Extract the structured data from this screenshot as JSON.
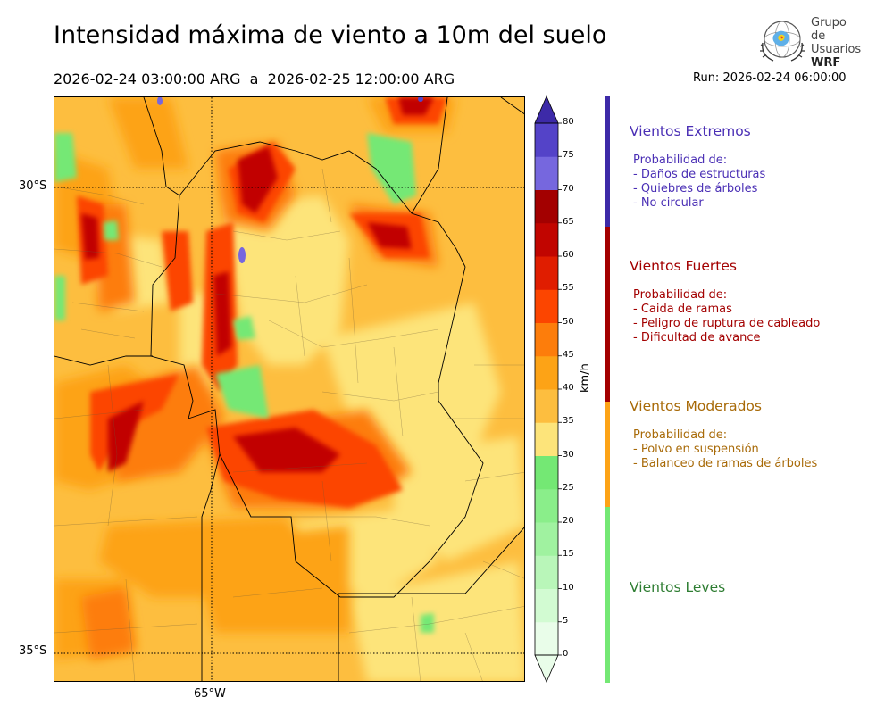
{
  "title": "Intensidad máxima de viento a 10m del suelo",
  "period": {
    "start": "2026-02-24 03:00:00 ARG",
    "sep": "a",
    "end": "2026-02-25 12:00:00 ARG"
  },
  "run": "Run: 2026-02-24 06:00:00",
  "logo": {
    "line1": "Grupo de",
    "line2": "Usuarios",
    "line3": "WRF"
  },
  "map": {
    "lat_labels": [
      "30°S",
      "35°S"
    ],
    "lon_labels": [
      "65°W"
    ]
  },
  "colorbar": {
    "unit": "km/h",
    "ticks": [
      "0",
      "5",
      "10",
      "15",
      "20",
      "25",
      "30",
      "35",
      "40",
      "45",
      "50",
      "55",
      "60",
      "65",
      "70",
      "75",
      "80"
    ],
    "colors": [
      "#e9fde9",
      "#d2fbd2",
      "#b9f6b9",
      "#a0f2a0",
      "#8aee8a",
      "#74e874",
      "#fde47a",
      "#fdbe3f",
      "#fda316",
      "#fd7d0b",
      "#fc4500",
      "#e01d00",
      "#c10500",
      "#a30000",
      "#7667de",
      "#5443c8",
      "#3d2aa8"
    ]
  },
  "legend": [
    {
      "title": "Vientos Extremos",
      "color": "#4a2fb5",
      "bar_color": "#3d2aa8",
      "range": [
        65,
        80
      ],
      "lines": [
        "Probabilidad de:",
        "- Daños de estructuras",
        "- Quiebres de árboles",
        "- No circular"
      ]
    },
    {
      "title": "Vientos Fuertes",
      "color": "#a30000",
      "bar_color": "#a30000",
      "range": [
        40,
        65
      ],
      "lines": [
        "Probabilidad de:",
        "- Caida de ramas",
        "- Peligro de ruptura de cableado",
        "- Dificultad de avance"
      ]
    },
    {
      "title": "Vientos Moderados",
      "color": "#a86a08",
      "bar_color": "#fda316",
      "range": [
        25,
        40
      ],
      "lines": [
        "Probabilidad de:",
        "- Polvo en suspensión",
        "- Balanceo de ramas de árboles"
      ]
    },
    {
      "title": "Vientos Leves",
      "color": "#2e7d32",
      "bar_color": "#74e874",
      "range": [
        0,
        25
      ],
      "lines": []
    }
  ]
}
